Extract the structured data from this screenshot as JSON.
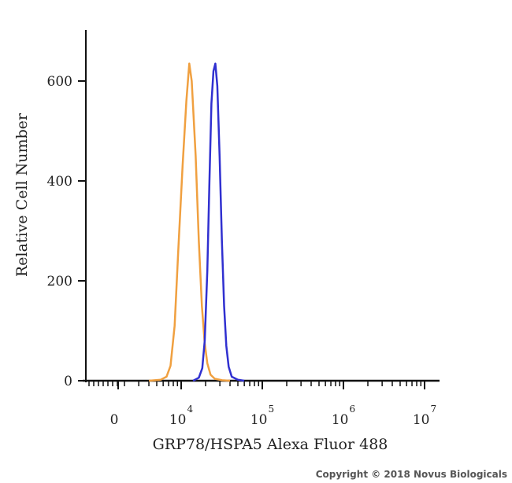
{
  "chart_data": {
    "type": "line",
    "xlabel": "GRP78/HSPA5 Alexa Fluor 488",
    "ylabel": "Relative Cell Number",
    "ylim": [
      0,
      680
    ],
    "y_ticks": [
      {
        "value": 0,
        "label": "0"
      },
      {
        "value": 200,
        "label": "200"
      },
      {
        "value": 400,
        "label": "400"
      },
      {
        "value": 600,
        "label": "600"
      }
    ],
    "x_scale": "biexponential",
    "x_ticks": [
      {
        "value": 0,
        "base": "0",
        "exp": ""
      },
      {
        "value": 10000,
        "base": "10",
        "exp": "4"
      },
      {
        "value": 100000,
        "base": "10",
        "exp": "5"
      },
      {
        "value": 1000000,
        "base": "10",
        "exp": "6"
      },
      {
        "value": 10000000,
        "base": "10",
        "exp": "7"
      }
    ],
    "grid": false,
    "series": [
      {
        "color": "#f0a040",
        "points": [
          [
            4000,
            0
          ],
          [
            5600,
            2
          ],
          [
            6600,
            8
          ],
          [
            7400,
            30
          ],
          [
            8300,
            110
          ],
          [
            9200,
            260
          ],
          [
            10400,
            430
          ],
          [
            11600,
            560
          ],
          [
            12600,
            635
          ],
          [
            13500,
            600
          ],
          [
            15100,
            450
          ],
          [
            16500,
            280
          ],
          [
            18000,
            150
          ],
          [
            19500,
            75
          ],
          [
            21000,
            35
          ],
          [
            23000,
            12
          ],
          [
            26000,
            4
          ],
          [
            32000,
            1
          ],
          [
            40000,
            0
          ]
        ]
      },
      {
        "color": "#3030d0",
        "points": [
          [
            14000,
            0
          ],
          [
            16500,
            6
          ],
          [
            18200,
            25
          ],
          [
            19500,
            80
          ],
          [
            21000,
            220
          ],
          [
            22300,
            400
          ],
          [
            23600,
            555
          ],
          [
            25000,
            620
          ],
          [
            26400,
            635
          ],
          [
            27900,
            590
          ],
          [
            29800,
            450
          ],
          [
            31800,
            280
          ],
          [
            33800,
            150
          ],
          [
            36000,
            70
          ],
          [
            38500,
            28
          ],
          [
            42000,
            8
          ],
          [
            50000,
            2
          ],
          [
            60000,
            0
          ]
        ]
      }
    ]
  },
  "copyright": "Copyright © 2018 Novus Biologicals"
}
